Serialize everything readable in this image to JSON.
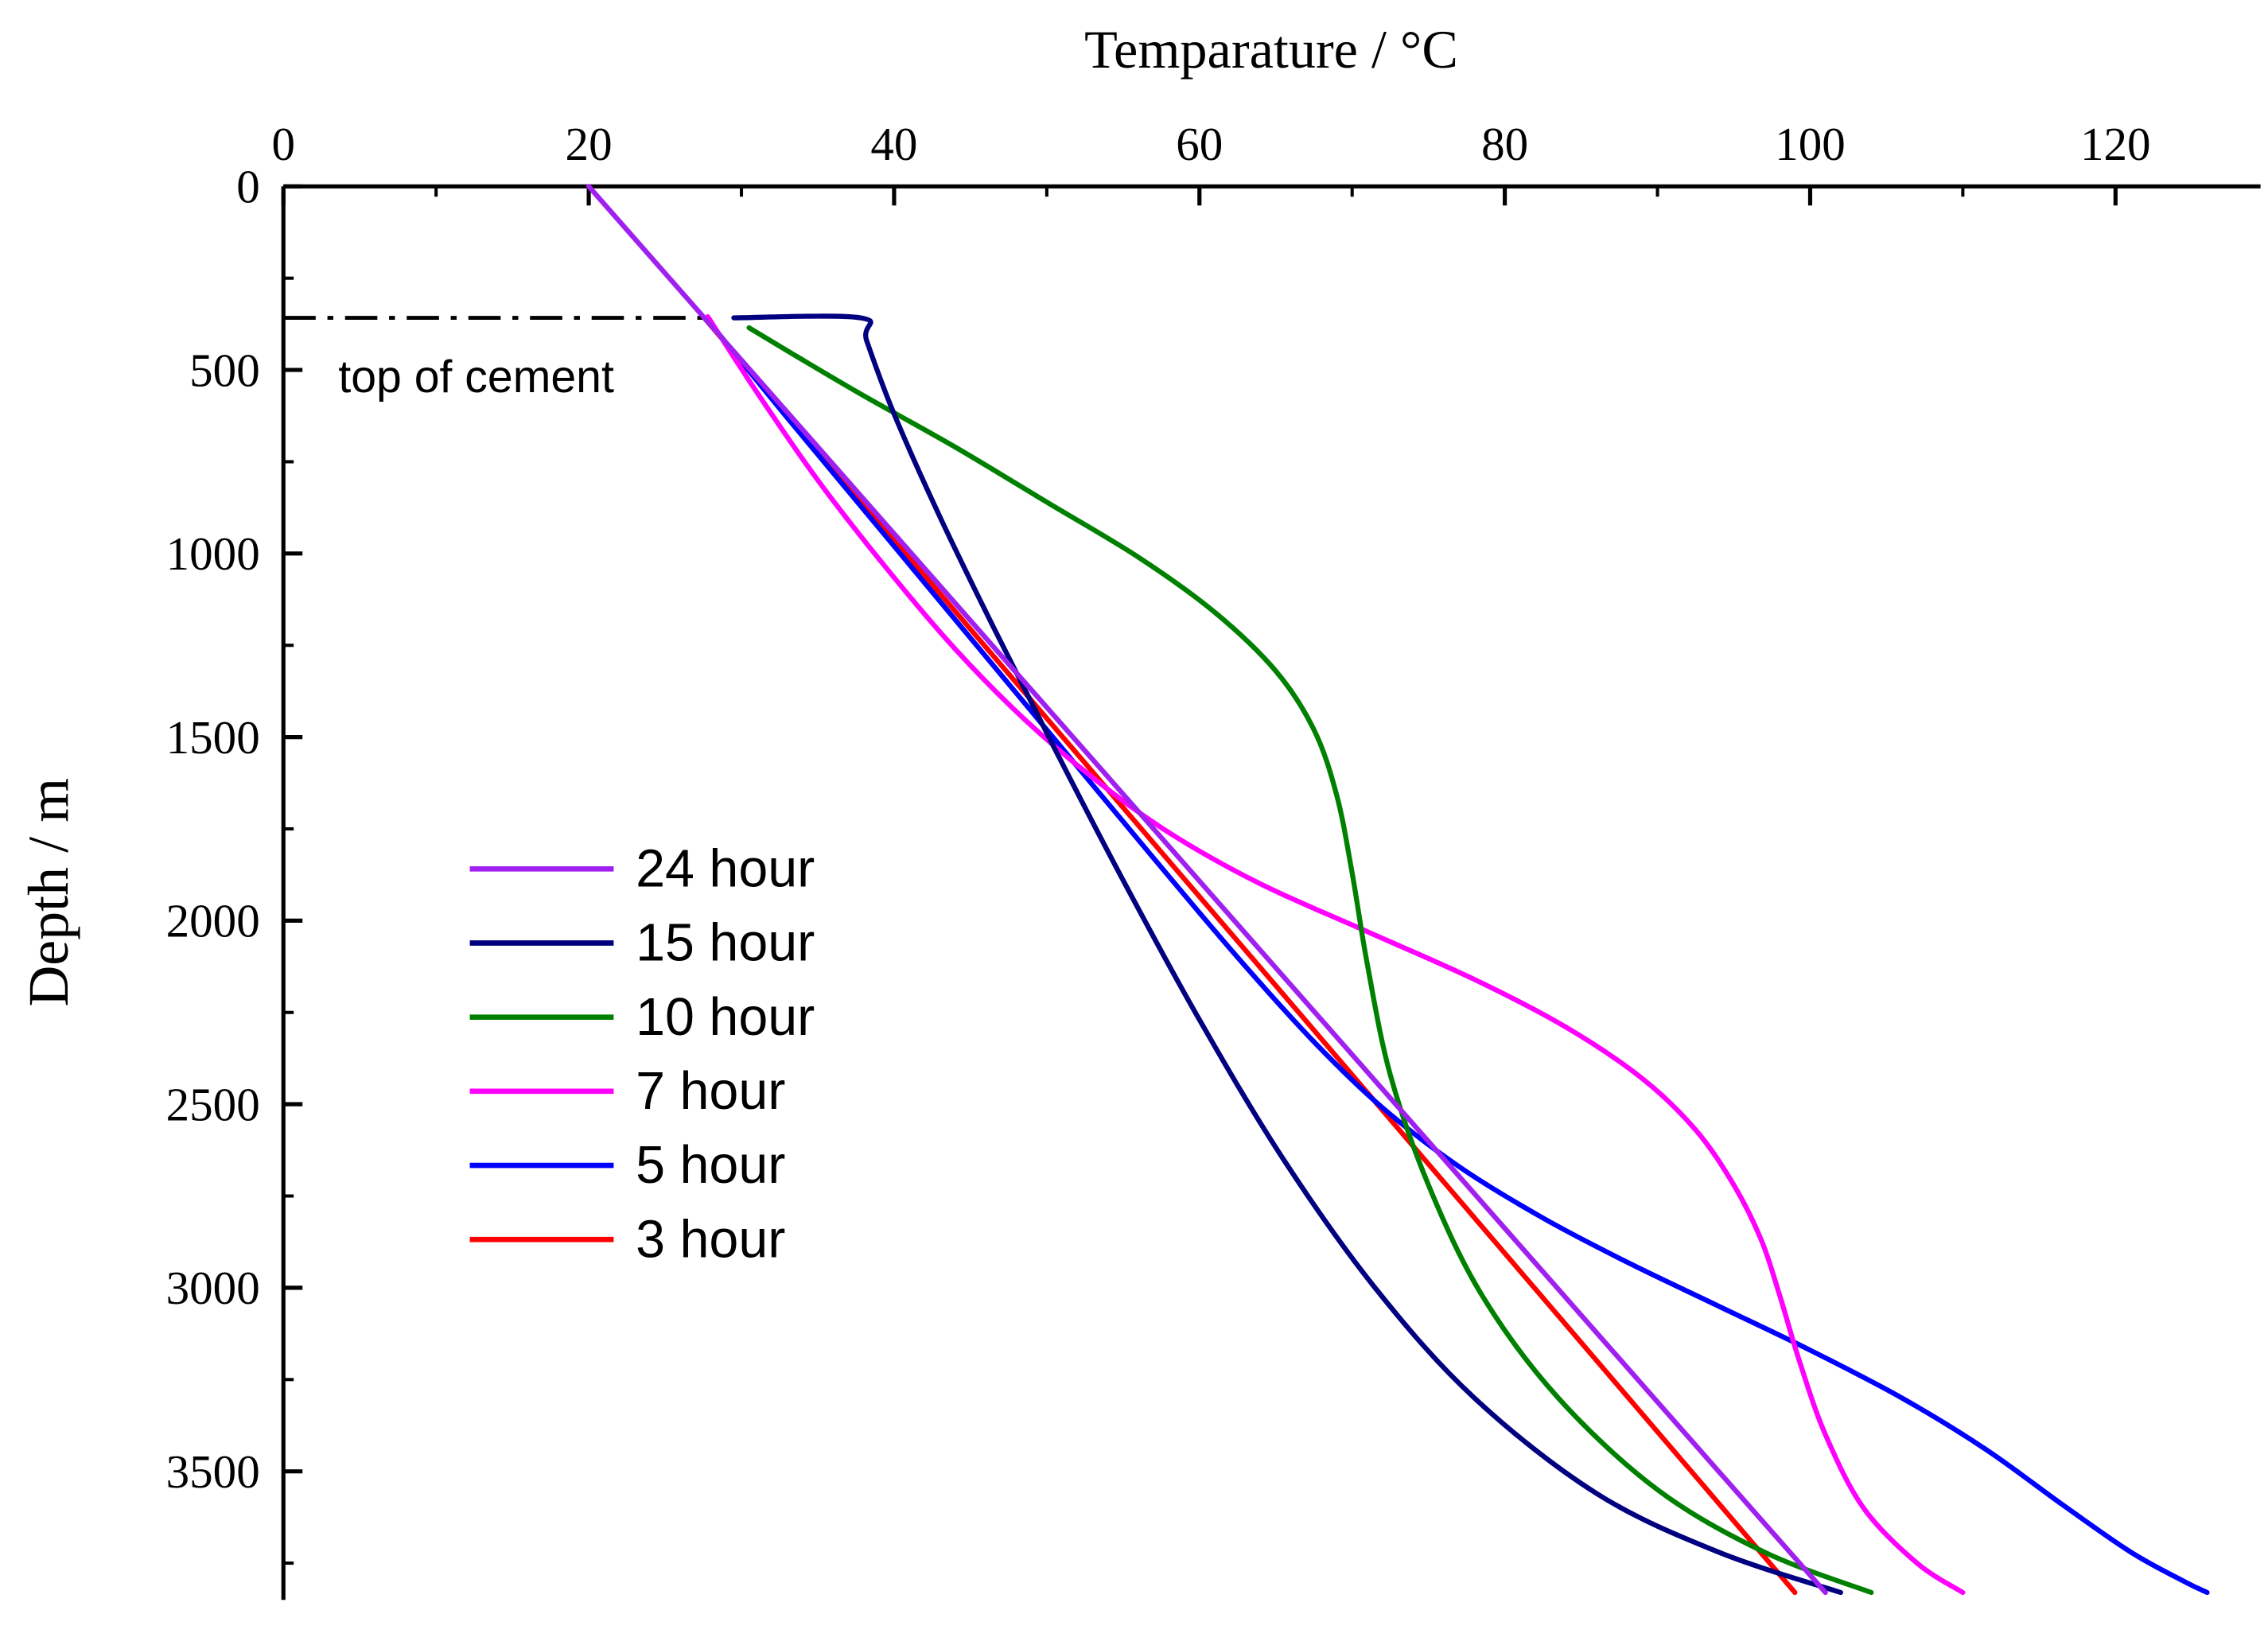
{
  "chart_data": {
    "type": "line",
    "title": "Temparature / °C",
    "xlabel": "Temparature / °C",
    "ylabel": "Depth / m",
    "background": "#FFFFFF",
    "axis_color": "#000000",
    "x_axis": {
      "min": 0,
      "max": 129.5,
      "ticks": [
        0,
        20,
        40,
        60,
        80,
        100,
        120
      ],
      "minor_step": 10,
      "position": "top"
    },
    "y_axis": {
      "min": 0,
      "max": 3850,
      "ticks": [
        0,
        500,
        1000,
        1500,
        2000,
        2500,
        3000,
        3500
      ],
      "minor_step": 250,
      "inverted": true
    },
    "annotation": {
      "label": "top of cement",
      "depth": 358,
      "line_x_start": 0,
      "line_x_end": 27.5,
      "line_style": "dash-dot",
      "color": "#000000"
    },
    "legend": {
      "position": "middle-left",
      "entries": [
        "24 hour",
        "15 hour",
        "10 hour",
        "7 hour",
        "5 hour",
        "3 hour"
      ]
    },
    "series": [
      {
        "name": "24 hour",
        "color": "#A020F0",
        "points": [
          [
            20,
            0
          ],
          [
            30,
            473
          ],
          [
            40,
            946
          ],
          [
            50,
            1419
          ],
          [
            60,
            1892
          ],
          [
            70,
            2365
          ],
          [
            80,
            2838
          ],
          [
            90,
            3311
          ],
          [
            101,
            3830
          ]
        ]
      },
      {
        "name": "15 hour",
        "color": "#000080",
        "points": [
          [
            29.5,
            358
          ],
          [
            37.8,
            358
          ],
          [
            38.2,
            420
          ],
          [
            40,
            620
          ],
          [
            43,
            900
          ],
          [
            46.5,
            1200
          ],
          [
            50.5,
            1530
          ],
          [
            55,
            1890
          ],
          [
            60,
            2270
          ],
          [
            65.5,
            2650
          ],
          [
            71.5,
            3000
          ],
          [
            78,
            3300
          ],
          [
            86,
            3560
          ],
          [
            94,
            3720
          ],
          [
            102,
            3830
          ]
        ]
      },
      {
        "name": "10 hour",
        "color": "#008000",
        "points": [
          [
            30.5,
            385
          ],
          [
            33.5,
            460
          ],
          [
            38,
            570
          ],
          [
            44,
            710
          ],
          [
            50,
            860
          ],
          [
            56,
            1010
          ],
          [
            61,
            1160
          ],
          [
            65,
            1320
          ],
          [
            67.5,
            1480
          ],
          [
            69,
            1660
          ],
          [
            70,
            1870
          ],
          [
            71,
            2120
          ],
          [
            72.5,
            2420
          ],
          [
            75,
            2720
          ],
          [
            78.5,
            3020
          ],
          [
            83.5,
            3300
          ],
          [
            90,
            3550
          ],
          [
            97,
            3720
          ],
          [
            104,
            3830
          ]
        ]
      },
      {
        "name": "7 hour",
        "color": "#FF00FF",
        "points": [
          [
            27.8,
            355
          ],
          [
            31,
            560
          ],
          [
            35,
            800
          ],
          [
            39.5,
            1040
          ],
          [
            44,
            1260
          ],
          [
            48.5,
            1450
          ],
          [
            53,
            1610
          ],
          [
            58,
            1760
          ],
          [
            64,
            1900
          ],
          [
            71,
            2030
          ],
          [
            78,
            2160
          ],
          [
            84,
            2290
          ],
          [
            89,
            2430
          ],
          [
            92.5,
            2570
          ],
          [
            95,
            2720
          ],
          [
            96.8,
            2870
          ],
          [
            98,
            3020
          ],
          [
            99.3,
            3200
          ],
          [
            101,
            3400
          ],
          [
            103.5,
            3600
          ],
          [
            107,
            3750
          ],
          [
            110,
            3830
          ]
        ]
      },
      {
        "name": "5 hour",
        "color": "#0000FF",
        "points": [
          [
            27.8,
            365
          ],
          [
            33,
            630
          ],
          [
            39,
            930
          ],
          [
            45,
            1230
          ],
          [
            51,
            1530
          ],
          [
            57,
            1830
          ],
          [
            62.5,
            2100
          ],
          [
            67.5,
            2330
          ],
          [
            72,
            2510
          ],
          [
            77,
            2670
          ],
          [
            82.5,
            2810
          ],
          [
            88,
            2930
          ],
          [
            94,
            3050
          ],
          [
            100,
            3170
          ],
          [
            106,
            3300
          ],
          [
            111.5,
            3440
          ],
          [
            116.5,
            3590
          ],
          [
            121,
            3720
          ],
          [
            124.5,
            3800
          ],
          [
            126,
            3830
          ]
        ]
      },
      {
        "name": "3 hour",
        "color": "#FF0000",
        "points": [
          [
            27.6,
            360
          ],
          [
            35,
            720
          ],
          [
            45,
            1206
          ],
          [
            55,
            1692
          ],
          [
            65,
            2177
          ],
          [
            75,
            2663
          ],
          [
            85,
            3149
          ],
          [
            99,
            3830
          ]
        ]
      }
    ]
  }
}
